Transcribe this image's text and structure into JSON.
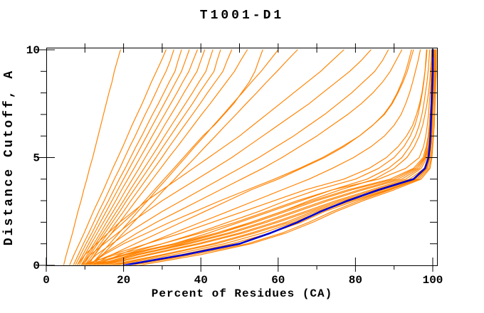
{
  "window": {
    "title": "T1001-D1"
  },
  "colors": {
    "background": "#ffffff",
    "axis": "#000000",
    "model_line": "#ff8200",
    "best_model_line": "#0000cd"
  },
  "chart_data": {
    "type": "line",
    "title": "T1001-D1",
    "xlabel": "Percent of Residues (CA)",
    "ylabel": "Distance Cutoff, A",
    "xlim": [
      0,
      101.8
    ],
    "ylim": [
      0,
      10.1
    ],
    "grid": false,
    "legend": "none",
    "x_ticks_major": [
      0,
      20,
      40,
      60,
      80,
      100
    ],
    "x_ticks_minor": [
      10,
      30,
      50,
      70,
      90
    ],
    "y_ticks_major": [
      0,
      5,
      10
    ],
    "y_ticks_minor": [
      1,
      2,
      3,
      4,
      6,
      7,
      8,
      9
    ],
    "cutoffs": [
      0,
      0.5,
      1,
      1.5,
      2,
      2.5,
      3,
      3.5,
      4,
      4.5,
      5,
      5.5,
      6,
      6.5,
      7,
      7.5,
      8,
      8.5,
      9,
      9.5,
      10
    ],
    "series": [
      {
        "name": "model-01",
        "role": "model",
        "percents": [
          4.5,
          5.2,
          6,
          6.8,
          7.5,
          8.2,
          9,
          9.7,
          10.5,
          11.2,
          12,
          12.7,
          13.4,
          14.1,
          14.8,
          15.5,
          16.2,
          17,
          17.6,
          18.4,
          19.2
        ]
      },
      {
        "name": "model-02",
        "role": "model",
        "percents": [
          6,
          7.2,
          8.5,
          9.8,
          11,
          12.2,
          13.5,
          14.8,
          16,
          17.2,
          18.5,
          19.8,
          21,
          22.2,
          23.5,
          24.8,
          26,
          27.2,
          28.5,
          29.8,
          31
        ]
      },
      {
        "name": "model-03",
        "role": "model",
        "percents": [
          7,
          8.3,
          9.6,
          11,
          12.3,
          13.6,
          15,
          16.3,
          17.6,
          19,
          20.3,
          21.6,
          23,
          24.3,
          25.6,
          27,
          28.3,
          29.6,
          31,
          32.1,
          33
        ]
      },
      {
        "name": "model-04",
        "role": "model",
        "percents": [
          7.5,
          8.9,
          10.3,
          11.8,
          13.2,
          14.6,
          16.1,
          17.5,
          18.9,
          20.4,
          21.8,
          23.2,
          24.7,
          26.1,
          27.5,
          29,
          30.4,
          31.8,
          33.3,
          34.1,
          35
        ]
      },
      {
        "name": "model-05",
        "role": "model",
        "percents": [
          8,
          9.5,
          11,
          12.5,
          14,
          15.5,
          17,
          18.5,
          20,
          21.5,
          23,
          24.5,
          26,
          27.5,
          29,
          30.5,
          32,
          33.5,
          35,
          36,
          37
        ]
      },
      {
        "name": "model-06",
        "role": "model",
        "percents": [
          8.5,
          10,
          11.6,
          13.2,
          14.8,
          16.4,
          18,
          19.5,
          21.1,
          22.7,
          24.3,
          25.9,
          27.4,
          29,
          30.6,
          32.2,
          33.8,
          35.3,
          36.9,
          38,
          39.1
        ]
      },
      {
        "name": "model-07",
        "role": "model",
        "percents": [
          9,
          10.6,
          12.3,
          14,
          15.6,
          17.3,
          19,
          20.6,
          22.3,
          24,
          25.6,
          27.3,
          29,
          30.6,
          32.3,
          34,
          35.6,
          37.3,
          39,
          40,
          41
        ]
      },
      {
        "name": "model-08",
        "role": "model",
        "percents": [
          9.3,
          11,
          12.8,
          14.6,
          16.4,
          18.2,
          20,
          21.7,
          23.5,
          25.3,
          27.1,
          28.9,
          30.6,
          32.4,
          34.2,
          36,
          37.8,
          39.5,
          41.3,
          42.2,
          43.1
        ]
      },
      {
        "name": "model-09",
        "role": "model",
        "percents": [
          9.6,
          11.4,
          13.3,
          15.2,
          17.1,
          19,
          20.8,
          22.7,
          24.6,
          26.5,
          28.4,
          30.2,
          32.1,
          34,
          35.9,
          37.8,
          39.6,
          41.5,
          43.4,
          44.2,
          45.1
        ]
      },
      {
        "name": "model-10",
        "role": "model",
        "percents": [
          10,
          12,
          14,
          16,
          18,
          20,
          21.9,
          23.9,
          25.9,
          27.9,
          29.9,
          31.8,
          33.8,
          35.8,
          37.8,
          39.8,
          41.7,
          43.7,
          45.7,
          46.8,
          48
        ]
      },
      {
        "name": "model-11",
        "role": "model",
        "percents": [
          10.5,
          12.6,
          14.7,
          16.9,
          19,
          21.1,
          23.2,
          25.4,
          27.5,
          29.6,
          31.7,
          33.9,
          36,
          38.1,
          40.2,
          42.4,
          44.5,
          46.6,
          48.7,
          50.3,
          52
        ]
      },
      {
        "name": "model-12",
        "role": "model",
        "percents": [
          11,
          12.5,
          14.5,
          17,
          20,
          23,
          25.5,
          28,
          30.5,
          33,
          35.5,
          38,
          40.5,
          43.5,
          46,
          48.5,
          50.5,
          52.5,
          54,
          55,
          56
        ]
      },
      {
        "name": "model-13",
        "role": "model",
        "percents": [
          11.5,
          13.9,
          16.4,
          18.8,
          21.3,
          23.7,
          26.2,
          28.6,
          31.1,
          33.5,
          36,
          38.4,
          40.9,
          43.3,
          45.8,
          48.2,
          50.7,
          53.1,
          55.6,
          57.8,
          60
        ]
      },
      {
        "name": "model-14",
        "role": "model",
        "percents": [
          12,
          14.6,
          17.3,
          19.9,
          22.6,
          25.2,
          27.9,
          30.5,
          33.2,
          35.8,
          38.5,
          41.1,
          43.8,
          46.4,
          49.1,
          51.7,
          54.4,
          57,
          59.7,
          62.3,
          65
        ]
      },
      {
        "name": "model-15",
        "role": "model",
        "percents": [
          8,
          10,
          13,
          16,
          19,
          22.5,
          26,
          30,
          34,
          38,
          42,
          46,
          50,
          53.5,
          57,
          60.5,
          64,
          67.5,
          71,
          74,
          77
        ]
      },
      {
        "name": "model-16",
        "role": "model",
        "percents": [
          9,
          11.5,
          15,
          18.5,
          22,
          26,
          30,
          34.5,
          39,
          43.5,
          48,
          52,
          56,
          60,
          64,
          68,
          71.5,
          75,
          78.5,
          81.5,
          84
        ]
      },
      {
        "name": "model-17",
        "role": "model",
        "percents": [
          10,
          13,
          17,
          21,
          25.5,
          30,
          35,
          40,
          45,
          50,
          55,
          59.5,
          64,
          68,
          72,
          75.5,
          79,
          82,
          85,
          87,
          88.5
        ]
      },
      {
        "name": "model-18",
        "role": "model",
        "percents": [
          11,
          14.5,
          19,
          23.5,
          28.5,
          34,
          39.5,
          45,
          50.5,
          56,
          61,
          65.5,
          70,
          74,
          78,
          81.5,
          84.5,
          87,
          89,
          90.5,
          92
        ]
      },
      {
        "name": "model-19",
        "role": "model",
        "percents": [
          12,
          17,
          23,
          29,
          35,
          41,
          47,
          53,
          60,
          66,
          72,
          77,
          81,
          84.5,
          87.5,
          89.5,
          91,
          92.3,
          93.4,
          94.2,
          95
        ]
      },
      {
        "name": "model-20",
        "role": "model",
        "percents": [
          13,
          19,
          26,
          33,
          40,
          47,
          54,
          61,
          68,
          74,
          79.5,
          84,
          87.5,
          90,
          91.8,
          93,
          94,
          94.8,
          95.5,
          96.2,
          96.8
        ]
      },
      {
        "name": "model-21",
        "role": "model",
        "percents": [
          11,
          15,
          20,
          26,
          32,
          38.5,
          45,
          52,
          59,
          65.5,
          71.5,
          76.5,
          81,
          84.5,
          87.3,
          89.3,
          90.8,
          92,
          93,
          93.8,
          94.5
        ]
      },
      {
        "name": "model-22",
        "role": "model",
        "percents": [
          9,
          18,
          30,
          40,
          49,
          57,
          65,
          74,
          86,
          93,
          96.5,
          97.6,
          98.2,
          98.6,
          98.9,
          99.1,
          99.3,
          99.5,
          99.6,
          99.8,
          99.9
        ]
      },
      {
        "name": "model-23",
        "role": "model",
        "percents": [
          10,
          20,
          33,
          44,
          53,
          61,
          69,
          78,
          89,
          95,
          97.5,
          98.3,
          98.8,
          99.1,
          99.3,
          99.5,
          99.6,
          99.7,
          99.8,
          99.9,
          100
        ]
      },
      {
        "name": "model-24",
        "role": "model",
        "percents": [
          12,
          23,
          36,
          47,
          56,
          64,
          72,
          81,
          91,
          96,
          98,
          98.8,
          99.2,
          99.4,
          99.6,
          99.7,
          99.8,
          99.9,
          100,
          100,
          100
        ]
      },
      {
        "name": "model-25",
        "role": "model",
        "percents": [
          14,
          26,
          39,
          50,
          59,
          67,
          75,
          84,
          93,
          97,
          98.5,
          99,
          99.4,
          99.6,
          99.7,
          99.8,
          99.9,
          100,
          100,
          100.2,
          100.3
        ]
      },
      {
        "name": "model-26",
        "role": "model",
        "percents": [
          16,
          30,
          43,
          53,
          62,
          69,
          77,
          86,
          95,
          98,
          99,
          99.4,
          99.6,
          99.8,
          99.9,
          100,
          100.1,
          100.2,
          100.3,
          100.4,
          100.5
        ]
      },
      {
        "name": "model-27",
        "role": "model",
        "percents": [
          18,
          33,
          46,
          56,
          64,
          71,
          79,
          88,
          96,
          98.6,
          99.3,
          99.6,
          99.8,
          99.9,
          100,
          100.2,
          100.4,
          100.5,
          100.6,
          100.8,
          100.9
        ]
      },
      {
        "name": "model-28",
        "role": "model",
        "percents": [
          22,
          38,
          52,
          61,
          68,
          74,
          81,
          89,
          96.5,
          99,
          99.6,
          99.9,
          100.1,
          100.3,
          100.4,
          100.5,
          100.6,
          100.7,
          100.8,
          100.9,
          101
        ]
      },
      {
        "name": "model-29",
        "role": "model",
        "percents": [
          24,
          40,
          53,
          62,
          69,
          75,
          82,
          90,
          97,
          99.3,
          99.8,
          100,
          100.2,
          100.4,
          100.5,
          100.6,
          100.7,
          100.8,
          100.9,
          101,
          101.2
        ]
      },
      {
        "name": "model-30",
        "role": "model",
        "percents": [
          15,
          27,
          40,
          51,
          60,
          68,
          76,
          85,
          94,
          97.8,
          98.8,
          99.2,
          99.5,
          99.7,
          99.8,
          99.9,
          100,
          100.1,
          100.2,
          100.3,
          100.4
        ]
      },
      {
        "name": "model-31",
        "role": "model",
        "percents": [
          11,
          21,
          34,
          45,
          54,
          62,
          70,
          79,
          90,
          95.5,
          97.8,
          98.5,
          99,
          99.3,
          99.5,
          99.6,
          99.7,
          99.8,
          99.9,
          100,
          100
        ]
      },
      {
        "name": "model-32",
        "role": "model",
        "percents": [
          13,
          24,
          37,
          48,
          57,
          65,
          73,
          82,
          92,
          96.5,
          98.2,
          98.9,
          99.3,
          99.5,
          99.7,
          99.8,
          99.9,
          100,
          100,
          100,
          100.1
        ]
      },
      {
        "name": "model-33",
        "role": "model",
        "percents": [
          17,
          31,
          44,
          54,
          63,
          70,
          78,
          87,
          95.5,
          98.3,
          99.1,
          99.5,
          99.7,
          99.9,
          100,
          100.1,
          100.2,
          100.3,
          100.4,
          100.5,
          100.6
        ]
      },
      {
        "name": "model-34",
        "role": "model",
        "percents": [
          20,
          35,
          48,
          58,
          66,
          72,
          80,
          88.5,
          96,
          98.5,
          99.2,
          99.6,
          99.8,
          100,
          100.1,
          100.2,
          100.3,
          100.4,
          100.5,
          100.6,
          100.7
        ]
      },
      {
        "name": "model-35",
        "role": "model",
        "percents": [
          12,
          20,
          30,
          39,
          47,
          55,
          62,
          70,
          80,
          86,
          90,
          92.5,
          94.2,
          95.4,
          96.2,
          96.8,
          97.3,
          97.7,
          98,
          98.2,
          98.4
        ]
      },
      {
        "name": "model-36",
        "role": "model",
        "percents": [
          13,
          22,
          33,
          42,
          50,
          58,
          66,
          74,
          83,
          88.5,
          92,
          94,
          95.5,
          96.5,
          97.2,
          97.7,
          98.1,
          98.5,
          98.8,
          99,
          99.2
        ]
      },
      {
        "name": "model-37",
        "role": "model",
        "percents": [
          14,
          24,
          35,
          45,
          53,
          61,
          68,
          76,
          85,
          90,
          93.3,
          95.2,
          96.5,
          97.4,
          98,
          98.5,
          98.9,
          99.2,
          99.4,
          99.6,
          99.7
        ]
      },
      {
        "name": "model-38",
        "role": "model",
        "percents": [
          10,
          17,
          26,
          35,
          43,
          51,
          59,
          67,
          77,
          83.5,
          88,
          91,
          93.2,
          94.8,
          95.8,
          96.6,
          97.2,
          97.6,
          98,
          98.3,
          98.5
        ]
      },
      {
        "name": "best-model",
        "role": "best",
        "percents": [
          20,
          36,
          50,
          58,
          65,
          71,
          78,
          86,
          95,
          98,
          98.9,
          99.2,
          99.4,
          99.5,
          99.6,
          99.7,
          99.8,
          99.9,
          100,
          100,
          100
        ]
      }
    ]
  }
}
